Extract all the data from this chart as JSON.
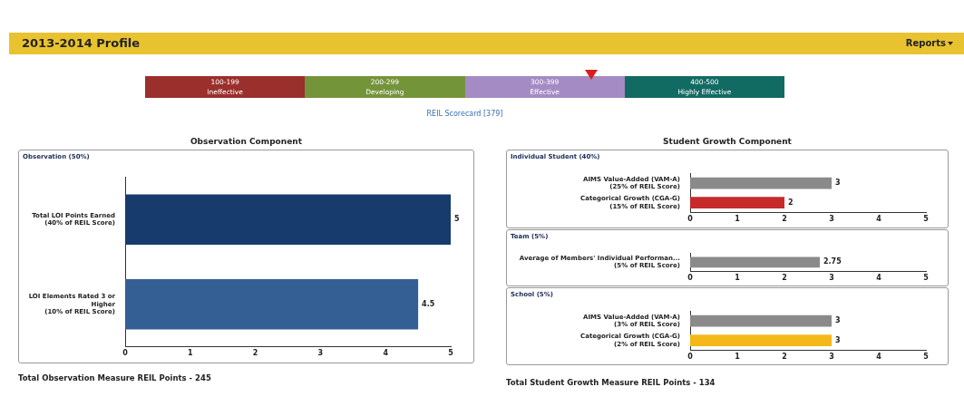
{
  "chart_data": [
    {
      "type": "other",
      "title": "2013-2014 Profile",
      "categories": [
        "100-199\nIneffective",
        "200-299\nDeveloping",
        "300-399\nEffective",
        "400-500\nHighly Effective"
      ],
      "colors": [
        "#9b2f2c",
        "#74943a",
        "#a58bc4",
        "#126b63"
      ],
      "annotations": [
        "Reports",
        "REIL Scorecard [379]"
      ]
    },
    {
      "type": "bar",
      "orientation": "horizontal",
      "title": "Observation Component",
      "subtitle": "Observation (50%)",
      "categories": [
        "Total LOI Points Earned\n(40% of REIL Score)",
        "LOI Elements Rated 3 or\nHigher\n(10% of REIL Score)"
      ],
      "values": [
        5,
        4.5
      ],
      "colors": [
        "#173b6c",
        "#345f94"
      ],
      "xlim": [
        0,
        5
      ],
      "xticks": [
        0,
        1,
        2,
        3,
        4,
        5
      ],
      "data_labels": true,
      "annotations": [
        "Total Observation Measure REIL Points - 245"
      ]
    },
    {
      "type": "bar",
      "orientation": "horizontal",
      "title": "Student Growth Component",
      "subtitle": "Individual Student (40%)",
      "categories": [
        "AIMS Value-Added (VAM-A)\n(25% of REIL Score)",
        "Categorical Growth (CGA-G)\n(15% of REIL Score)"
      ],
      "values": [
        3,
        2
      ],
      "colors": [
        "#8a8a8a",
        "#c62a2a"
      ],
      "xlim": [
        0,
        5
      ],
      "xticks": [
        0,
        1,
        2,
        3,
        4,
        5
      ],
      "data_labels": true
    },
    {
      "type": "bar",
      "orientation": "horizontal",
      "subtitle": "Team (5%)",
      "categories": [
        "Average of Members' Individual Performan...\n(5% of REIL Score)"
      ],
      "values": [
        2.75
      ],
      "colors": [
        "#8a8a8a"
      ],
      "xlim": [
        0,
        5
      ],
      "xticks": [
        0,
        1,
        2,
        3,
        4,
        5
      ],
      "data_labels": true
    },
    {
      "type": "bar",
      "orientation": "horizontal",
      "subtitle": "School (5%)",
      "categories": [
        "AIMS Value-Added (VAM-A)\n(3% of REIL Score)",
        "Categorical Growth (CGA-G)\n(2% of REIL Score)"
      ],
      "values": [
        3,
        3
      ],
      "colors": [
        "#8a8a8a",
        "#f4b819"
      ],
      "xlim": [
        0,
        5
      ],
      "xticks": [
        0,
        1,
        2,
        3,
        4,
        5
      ],
      "data_labels": true,
      "annotations": [
        "Total Student Growth Measure REIL Points - 134"
      ]
    }
  ]
}
